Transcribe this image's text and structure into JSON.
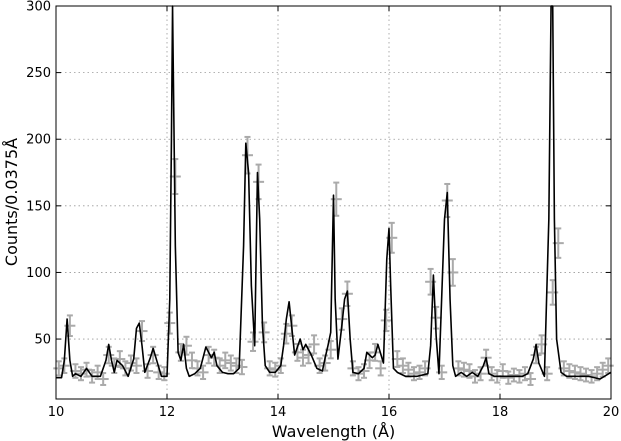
{
  "chart_data": {
    "type": "line",
    "xlabel": "Wavelength (Å)",
    "ylabel": "Counts/0.0375Å",
    "xlim": [
      10,
      20
    ],
    "ylim": [
      5,
      300
    ],
    "grid": true,
    "x_ticks": [
      10,
      12,
      14,
      16,
      18,
      20
    ],
    "y_ticks": [
      50,
      100,
      150,
      200,
      250,
      300
    ],
    "colors": {
      "model": "#000000",
      "data": "#aaaaaa",
      "grid": "#999999"
    },
    "series": [
      {
        "kind": "model",
        "x": [
          10.0,
          10.1,
          10.15,
          10.2,
          10.25,
          10.3,
          10.35,
          10.45,
          10.55,
          10.65,
          10.8,
          10.9,
          10.95,
          11.0,
          11.05,
          11.1,
          11.2,
          11.3,
          11.4,
          11.45,
          11.5,
          11.55,
          11.6,
          11.7,
          11.75,
          11.8,
          11.9,
          12.0,
          12.05,
          12.08,
          12.1,
          12.15,
          12.2,
          12.25,
          12.3,
          12.35,
          12.4,
          12.5,
          12.6,
          12.7,
          12.75,
          12.8,
          12.85,
          12.9,
          13.0,
          13.1,
          13.2,
          13.3,
          13.38,
          13.42,
          13.47,
          13.52,
          13.58,
          13.63,
          13.67,
          13.72,
          13.77,
          13.85,
          13.95,
          14.05,
          14.1,
          14.15,
          14.2,
          14.3,
          14.4,
          14.45,
          14.5,
          14.6,
          14.7,
          14.8,
          14.85,
          14.9,
          14.95,
          15.0,
          15.03,
          15.08,
          15.15,
          15.2,
          15.25,
          15.3,
          15.35,
          15.45,
          15.55,
          15.6,
          15.7,
          15.75,
          15.8,
          15.9,
          15.96,
          16.0,
          16.03,
          16.08,
          16.15,
          16.3,
          16.5,
          16.7,
          16.75,
          16.8,
          16.85,
          16.9,
          17.0,
          17.05,
          17.1,
          17.15,
          17.2,
          17.3,
          17.4,
          17.5,
          17.6,
          17.7,
          17.75,
          17.8,
          17.9,
          18.0,
          18.2,
          18.4,
          18.5,
          18.6,
          18.65,
          18.7,
          18.8,
          18.88,
          18.92,
          18.95,
          18.98,
          19.02,
          19.1,
          19.2,
          19.4,
          19.6,
          19.8,
          20.0
        ],
        "y": [
          21,
          21,
          34,
          65,
          34,
          22,
          24,
          22,
          28,
          22,
          22,
          34,
          46,
          34,
          25,
          34,
          30,
          22,
          35,
          58,
          62,
          45,
          25,
          36,
          43,
          36,
          22,
          22,
          80,
          200,
          300,
          120,
          40,
          34,
          46,
          28,
          22,
          24,
          28,
          44,
          40,
          36,
          40,
          30,
          25,
          24,
          24,
          28,
          120,
          197,
          175,
          90,
          45,
          175,
          140,
          60,
          30,
          25,
          25,
          30,
          45,
          65,
          78,
          38,
          50,
          42,
          46,
          38,
          28,
          26,
          36,
          45,
          55,
          158,
          80,
          35,
          60,
          80,
          86,
          50,
          25,
          24,
          28,
          40,
          36,
          38,
          46,
          32,
          110,
          133,
          90,
          28,
          25,
          22,
          22,
          24,
          45,
          98,
          52,
          24,
          140,
          160,
          80,
          30,
          22,
          25,
          22,
          25,
          22,
          30,
          36,
          24,
          22,
          22,
          22,
          22,
          24,
          35,
          46,
          32,
          22,
          140,
          300,
          300,
          140,
          50,
          25,
          22,
          22,
          22,
          20,
          25
        ]
      },
      {
        "kind": "data",
        "x": [
          10.05,
          10.15,
          10.25,
          10.35,
          10.45,
          10.55,
          10.65,
          10.75,
          10.85,
          10.95,
          11.05,
          11.15,
          11.25,
          11.35,
          11.45,
          11.55,
          11.65,
          11.75,
          11.85,
          11.95,
          12.05,
          12.15,
          12.25,
          12.35,
          12.45,
          12.55,
          12.65,
          12.75,
          12.85,
          12.95,
          13.05,
          13.15,
          13.25,
          13.35,
          13.45,
          13.55,
          13.65,
          13.75,
          13.85,
          13.95,
          14.05,
          14.15,
          14.25,
          14.35,
          14.45,
          14.55,
          14.65,
          14.75,
          14.85,
          14.95,
          15.05,
          15.15,
          15.25,
          15.35,
          15.45,
          15.55,
          15.65,
          15.75,
          15.85,
          15.95,
          16.05,
          16.15,
          16.25,
          16.35,
          16.45,
          16.55,
          16.65,
          16.75,
          16.85,
          16.95,
          17.05,
          17.15,
          17.25,
          17.35,
          17.45,
          17.55,
          17.65,
          17.75,
          17.85,
          17.95,
          18.05,
          18.15,
          18.25,
          18.35,
          18.45,
          18.55,
          18.65,
          18.75,
          18.85,
          18.95,
          19.05,
          19.15,
          19.25,
          19.35,
          19.45,
          19.55,
          19.65,
          19.75,
          19.85,
          19.95
        ],
        "y": [
          28,
          30,
          60,
          26,
          24,
          27,
          22,
          25,
          20,
          38,
          30,
          35,
          28,
          32,
          30,
          56,
          26,
          38,
          25,
          24,
          62,
          172,
          40,
          45,
          34,
          28,
          25,
          38,
          36,
          30,
          34,
          32,
          30,
          29,
          188,
          48,
          168,
          55,
          28,
          27,
          30,
          54,
          60,
          40,
          36,
          38,
          46,
          30,
          32,
          42,
          155,
          65,
          84,
          28,
          24,
          26,
          34,
          40,
          28,
          64,
          126,
          35,
          30,
          27,
          24,
          25,
          28,
          93,
          66,
          25,
          154,
          100,
          28,
          27,
          26,
          22,
          24,
          36,
          24,
          22,
          26,
          21,
          23,
          22,
          24,
          20,
          38,
          46,
          24,
          85,
          122,
          28,
          26,
          25,
          24,
          23,
          22,
          24,
          27,
          30
        ]
      }
    ]
  }
}
